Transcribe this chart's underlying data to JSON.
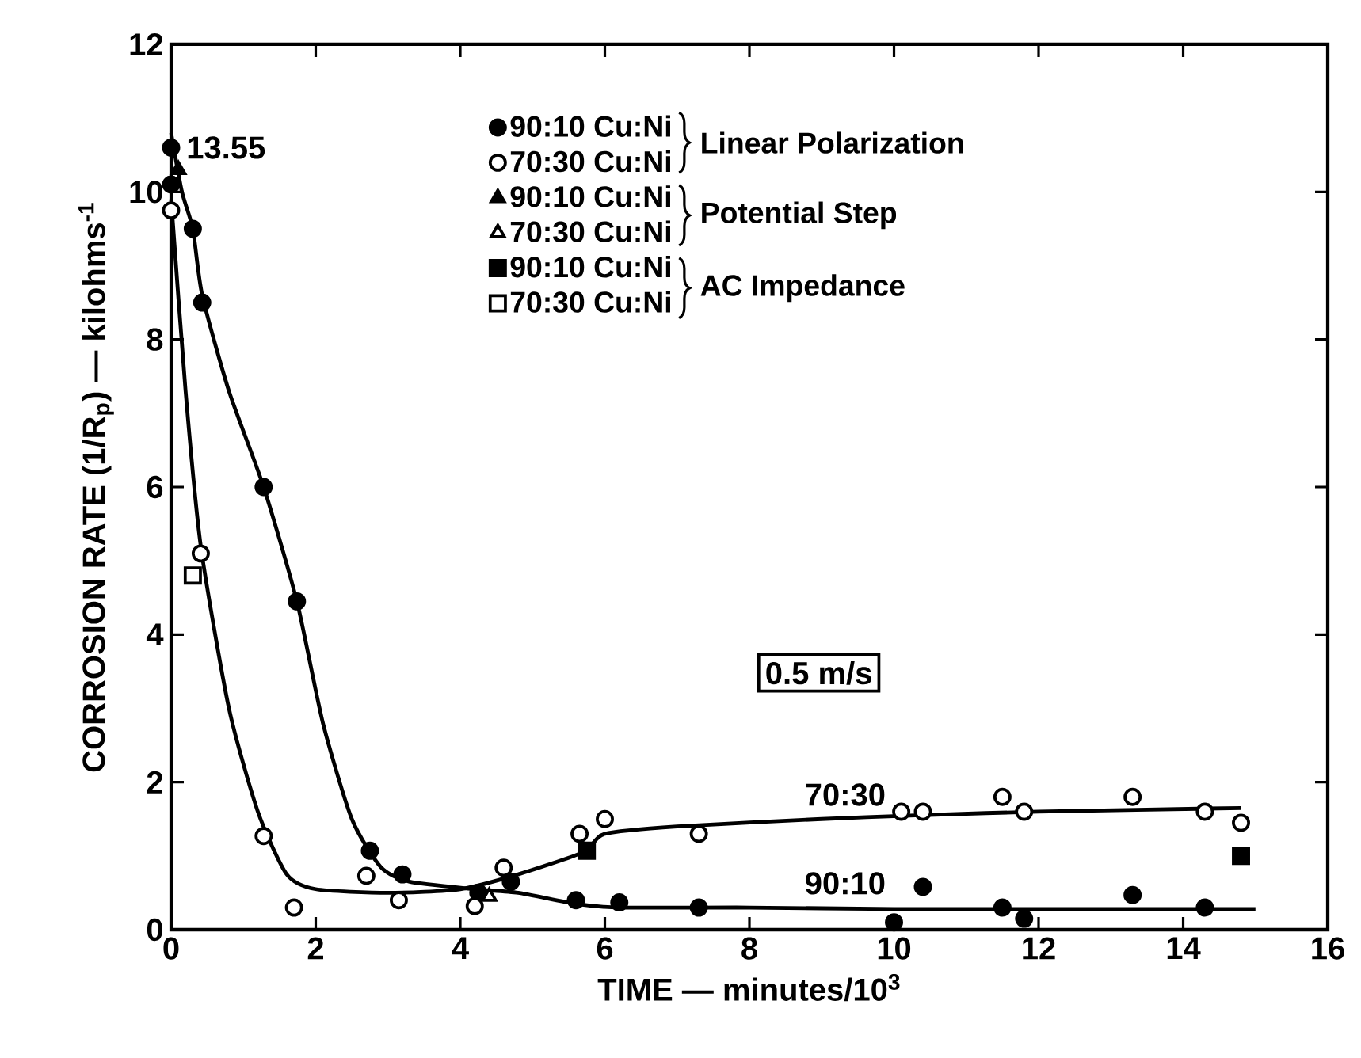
{
  "chart_data": {
    "type": "scatter",
    "xlabel": "TIME — minutes/10$^{3}$",
    "ylabel": "CORROSION RATE (1/R$_{p}$) — kilohms$^{-1}$",
    "xlim": [
      0,
      16
    ],
    "ylim": [
      0,
      12
    ],
    "xticks": [
      0,
      2,
      4,
      6,
      8,
      10,
      12,
      14,
      16
    ],
    "yticks": [
      0,
      2,
      4,
      6,
      8,
      10,
      12
    ],
    "legend": "top",
    "grid": false,
    "series": [
      {
        "type": "line",
        "name": "90:10",
        "color": "#000000",
        "x": [
          0,
          0.15,
          0.3,
          0.43,
          0.8,
          1.28,
          1.74,
          2.1,
          2.5,
          2.9,
          3.3,
          4.2,
          4.8,
          5.6,
          6.2,
          8,
          10,
          12,
          15
        ],
        "values": [
          10.8,
          10.0,
          9.5,
          8.6,
          7.3,
          6.0,
          4.45,
          2.8,
          1.5,
          0.85,
          0.65,
          0.55,
          0.5,
          0.35,
          0.3,
          0.3,
          0.28,
          0.28,
          0.28
        ]
      },
      {
        "type": "line",
        "name": "70:30",
        "color": "#000000",
        "x": [
          0,
          0.2,
          0.41,
          0.8,
          1.2,
          1.6,
          2.0,
          3,
          4.0,
          4.8,
          5.7,
          6.0,
          7,
          9,
          10.3,
          12,
          14.8
        ],
        "values": [
          9.9,
          7.3,
          5.2,
          3.0,
          1.6,
          0.75,
          0.55,
          0.5,
          0.55,
          0.75,
          1.05,
          1.3,
          1.4,
          1.5,
          1.55,
          1.6,
          1.65
        ]
      },
      {
        "name": "90:10 Cu:Ni",
        "marker": "circle",
        "color": "#000000",
        "x": [
          0,
          0,
          0.3,
          0.43,
          1.28,
          1.74,
          2.75,
          3.2,
          4.25,
          4.7,
          5.6,
          6.2,
          7.3,
          10.0,
          10.4,
          11.5,
          11.8,
          13.3,
          14.3
        ],
        "values": [
          10.6,
          10.1,
          9.5,
          8.5,
          6.0,
          4.45,
          1.07,
          0.75,
          0.5,
          0.65,
          0.4,
          0.37,
          0.3,
          0.1,
          0.58,
          0.3,
          0.15,
          0.47,
          0.3
        ]
      },
      {
        "name": "70:30 Cu:Ni",
        "marker": "circle",
        "color": "#ffffff",
        "x": [
          0,
          0.41,
          1.28,
          1.7,
          2.7,
          3.15,
          4.2,
          4.6,
          5.65,
          6.0,
          7.3,
          10.1,
          10.4,
          11.5,
          11.8,
          13.3,
          14.3,
          14.8
        ],
        "values": [
          9.75,
          5.1,
          1.27,
          0.3,
          0.73,
          0.4,
          0.32,
          0.84,
          1.3,
          1.5,
          1.3,
          1.6,
          1.6,
          1.8,
          1.6,
          1.8,
          1.6,
          1.45
        ]
      },
      {
        "name": "90:10 Cu:Ni",
        "marker": "triangle",
        "color": "#000000",
        "x": [
          0.1
        ],
        "values": [
          10.3
        ]
      },
      {
        "name": "70:30 Cu:Ni",
        "marker": "triangle",
        "color": "#ffffff",
        "x": [
          4.4
        ],
        "values": [
          0.45
        ]
      },
      {
        "name": "90:10 Cu:Ni",
        "marker": "square",
        "color": "#000000",
        "x": [
          5.75,
          14.8
        ],
        "values": [
          1.07,
          1.0
        ]
      },
      {
        "name": "70:30 Cu:Ni",
        "marker": "square",
        "color": "#ffffff",
        "x": [
          0.3
        ],
        "values": [
          4.8
        ]
      }
    ],
    "annotations": [
      "Linear Polarization",
      "Potential Step",
      "AC Impedance",
      "0.5 m/s",
      {
        "text": "13.55",
        "x": 0,
        "y": 10.6
      }
    ]
  }
}
